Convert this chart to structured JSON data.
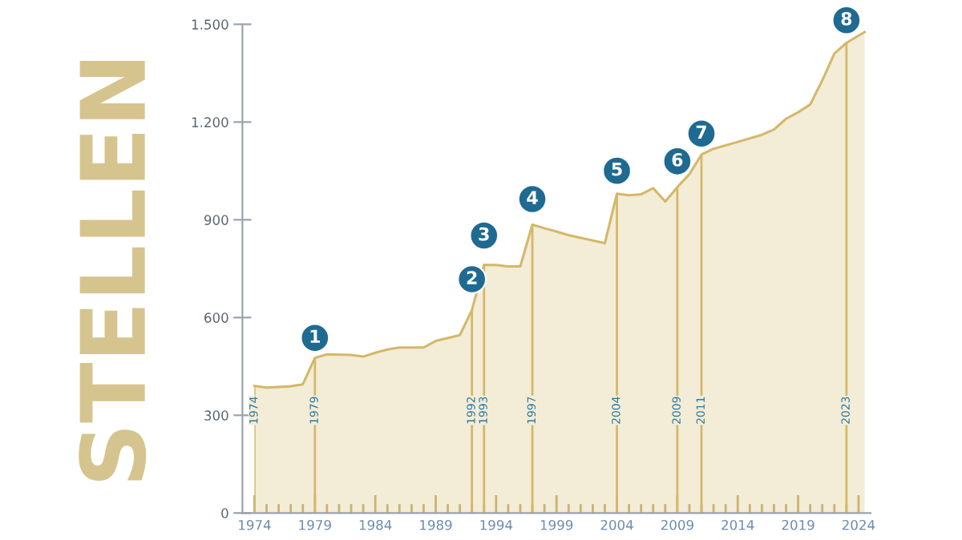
{
  "chart_data": {
    "type": "area",
    "ylabel": "STELLEN",
    "series": [
      {
        "color": "#d4b86a",
        "x": [
          1974,
          1975,
          1977,
          1978,
          1979,
          1980,
          1982,
          1983,
          1984,
          1985,
          1986,
          1988,
          1989,
          1991,
          1992,
          1993,
          1994,
          1995,
          1996,
          1997,
          1998,
          1999,
          2000,
          2003,
          2004,
          2005,
          2006,
          2007,
          2008,
          2009,
          2010,
          2011,
          2012,
          2014,
          2016,
          2017,
          2018,
          2019,
          2020,
          2021,
          2022,
          2023,
          2024.5
        ],
        "values": [
          390,
          385,
          389,
          395,
          476,
          487,
          485,
          480,
          492,
          502,
          508,
          508,
          528,
          546,
          623,
          762,
          761,
          757,
          757,
          885,
          874,
          864,
          853,
          828,
          980,
          975,
          978,
          997,
          956,
          1000,
          1040,
          1100,
          1118,
          1139,
          1161,
          1177,
          1210,
          1230,
          1254,
          1328,
          1410,
          1443,
          1476
        ]
      }
    ],
    "annotations": [
      {
        "text": "1",
        "x": 1979,
        "y": 476
      },
      {
        "text": "2",
        "x": 1992,
        "y": 656
      },
      {
        "text": "3",
        "x": 1993,
        "y": 790
      },
      {
        "text": "4",
        "x": 1997,
        "y": 902
      },
      {
        "text": "5",
        "x": 2004,
        "y": 989
      },
      {
        "text": "6",
        "x": 2009,
        "y": 1018
      },
      {
        "text": "7",
        "x": 2011,
        "y": 1103
      },
      {
        "text": "8",
        "x": 2023,
        "y": 1451
      }
    ],
    "ref_lines": [
      {
        "axis": "x",
        "value": 1974,
        "label": "1974",
        "color": "#d4b86a"
      },
      {
        "axis": "x",
        "value": 1979,
        "label": "1979",
        "color": "#d4b86a"
      },
      {
        "axis": "x",
        "value": 1992,
        "label": "1992",
        "color": "#d4b86a"
      },
      {
        "axis": "x",
        "value": 1993,
        "label": "1993",
        "color": "#d4b86a"
      },
      {
        "axis": "x",
        "value": 1997,
        "label": "1997",
        "color": "#d4b86a"
      },
      {
        "axis": "x",
        "value": 2004,
        "label": "2004",
        "color": "#d4b86a"
      },
      {
        "axis": "x",
        "value": 2009,
        "label": "2009",
        "color": "#d4b86a"
      },
      {
        "axis": "x",
        "value": 2011,
        "label": "2011",
        "color": "#d4b86a"
      },
      {
        "axis": "x",
        "value": 2023,
        "label": "2023",
        "color": "#d4b86a"
      }
    ],
    "xlim": [
      1973,
      2025
    ],
    "xticks": [
      1974,
      {
        "value": 1975,
        "label": null
      },
      {
        "value": 1976,
        "label": null
      },
      {
        "value": 1977,
        "label": null
      },
      {
        "value": 1978,
        "label": null
      },
      1979,
      {
        "value": 1980,
        "label": null
      },
      {
        "value": 1981,
        "label": null
      },
      {
        "value": 1982,
        "label": null
      },
      {
        "value": 1983,
        "label": null
      },
      1984,
      {
        "value": 1985,
        "label": null
      },
      {
        "value": 1986,
        "label": null
      },
      {
        "value": 1987,
        "label": null
      },
      {
        "value": 1988,
        "label": null
      },
      1989,
      {
        "value": 1990,
        "label": null
      },
      {
        "value": 1991,
        "label": null
      },
      {
        "value": 1992,
        "label": null
      },
      {
        "value": 1993,
        "label": null
      },
      1994,
      {
        "value": 1995,
        "label": null
      },
      {
        "value": 1996,
        "label": null
      },
      {
        "value": 1997,
        "label": null
      },
      {
        "value": 1998,
        "label": null
      },
      1999,
      {
        "value": 2000,
        "label": null
      },
      {
        "value": 2001,
        "label": null
      },
      {
        "value": 2002,
        "label": null
      },
      {
        "value": 2003,
        "label": null
      },
      2004,
      {
        "value": 2005,
        "label": null
      },
      {
        "value": 2006,
        "label": null
      },
      {
        "value": 2007,
        "label": null
      },
      {
        "value": 2008,
        "label": null
      },
      2009,
      {
        "value": 2010,
        "label": null
      },
      {
        "value": 2011,
        "label": null
      },
      {
        "value": 2012,
        "label": null
      },
      {
        "value": 2013,
        "label": null
      },
      2014,
      {
        "value": 2015,
        "label": null
      },
      {
        "value": 2016,
        "label": null
      },
      {
        "value": 2017,
        "label": null
      },
      {
        "value": 2018,
        "label": null
      },
      2019,
      {
        "value": 2020,
        "label": null
      },
      {
        "value": 2021,
        "label": null
      },
      {
        "value": 2022,
        "label": null
      },
      {
        "value": 2023,
        "label": null
      },
      2024
    ],
    "ylim": [
      0,
      1500
    ],
    "yticks": [
      0,
      300,
      600,
      900,
      {
        "value": 1200,
        "label": "1.200"
      },
      {
        "value": 1500,
        "label": "1.500"
      }
    ],
    "grid": false,
    "legend": false,
    "marker": "none",
    "line_style": "solid"
  }
}
